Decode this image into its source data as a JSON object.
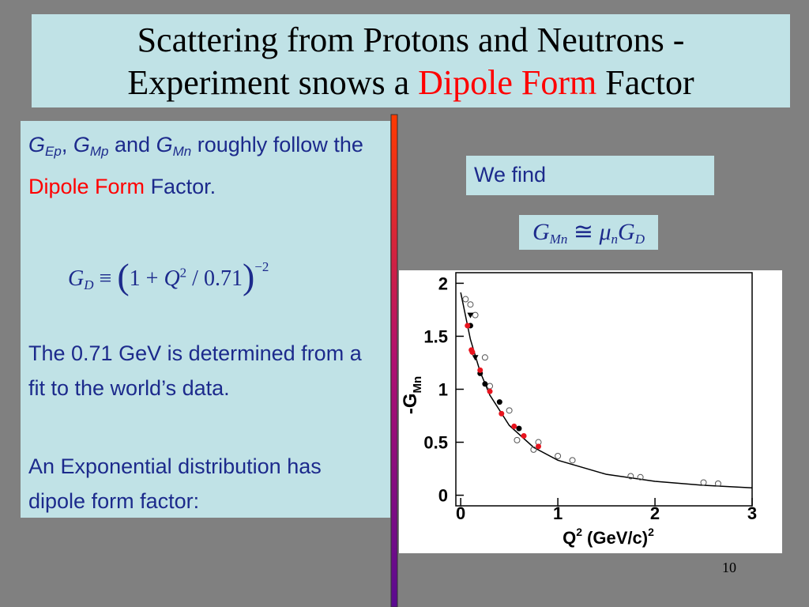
{
  "title": {
    "line1": "Scattering from Protons and Neutrons -",
    "line2": [
      "Experiment snows a",
      "Dipole Form",
      "Factor"
    ]
  },
  "left_panel": {
    "p1": [
      "G",
      "Ep",
      ",",
      "G",
      "Mp",
      "and",
      "G",
      "Mn",
      "roughly follow the",
      "Dipole Form",
      "Factor."
    ],
    "formula": [
      "G",
      "D",
      "≡",
      "(",
      "1",
      "+",
      "Q",
      "2",
      "/",
      "0.71",
      ")",
      "−2"
    ],
    "p2": "The 0.71 GeV is determined from a fit to the world’s data.",
    "p3": "An Exponential distribution has dipole form factor:"
  },
  "right_panel": {
    "we_find": "We find",
    "formula": [
      "G",
      "Mn",
      "≅",
      "μ",
      "n",
      "G",
      "D"
    ]
  },
  "page_number": "10",
  "plot": {
    "type": "scatter",
    "xlim": [
      -0.05,
      3.0
    ],
    "ylim": [
      -0.1,
      2.1
    ],
    "xticks": [
      0,
      1,
      2,
      3
    ],
    "yticks": [
      0,
      0.5,
      1,
      1.5,
      2
    ],
    "x_label": [
      "Q",
      "2",
      "(GeV/c)",
      "2"
    ],
    "y_label": [
      "-G",
      "Mn"
    ],
    "series": [
      {
        "marker": "open",
        "color": "#555555",
        "x": [
          0.05,
          0.1,
          0.15,
          0.25,
          0.3,
          0.5,
          0.58,
          0.75,
          0.8,
          1.0,
          1.15,
          1.75,
          1.85,
          2.5,
          2.65
        ],
        "values": [
          1.85,
          1.8,
          1.7,
          1.3,
          1.03,
          0.8,
          0.52,
          0.43,
          0.5,
          0.37,
          0.33,
          0.18,
          0.17,
          0.12,
          0.11
        ]
      },
      {
        "marker": "triangle",
        "color": "#000000",
        "x": [
          0.1,
          0.15
        ],
        "values": [
          1.7,
          1.3
        ]
      },
      {
        "marker": "filled",
        "color": "#000000",
        "x": [
          0.1,
          0.2,
          0.25,
          0.4,
          0.6
        ],
        "values": [
          1.6,
          1.15,
          1.05,
          0.88,
          0.63
        ]
      },
      {
        "marker": "filled",
        "color": "#e8141e",
        "x": [
          0.07,
          0.11,
          0.12,
          0.2,
          0.3,
          0.42,
          0.55,
          0.65,
          0.8
        ],
        "values": [
          1.6,
          1.37,
          1.35,
          1.18,
          0.98,
          0.77,
          0.65,
          0.56,
          0.46
        ]
      }
    ],
    "fit": {
      "color": "#000000",
      "x": [
        0,
        0.1,
        0.2,
        0.3,
        0.5,
        0.75,
        1,
        1.5,
        2,
        2.5,
        3
      ],
      "values": [
        1.913,
        1.47,
        1.165,
        0.945,
        0.659,
        0.452,
        0.33,
        0.197,
        0.131,
        0.094,
        0.07
      ]
    }
  }
}
